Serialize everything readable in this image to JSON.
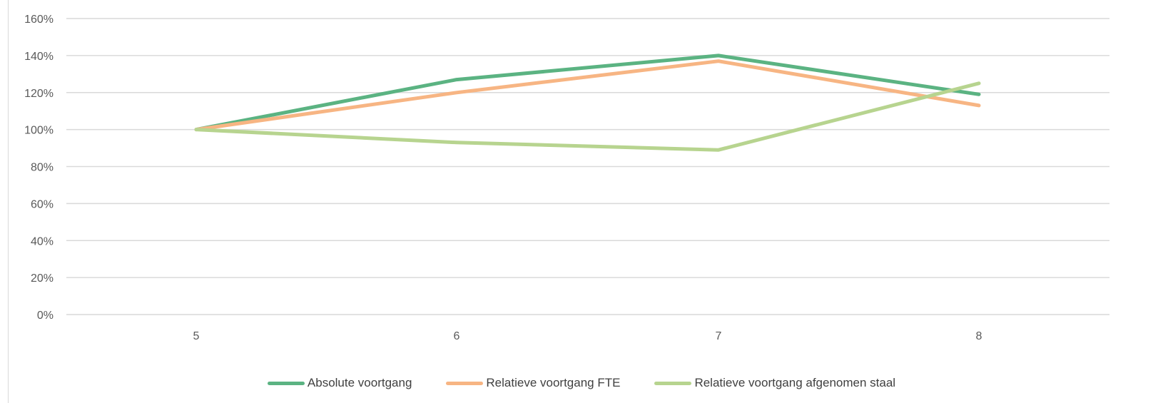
{
  "chart_data": {
    "type": "line",
    "title": "",
    "xlabel": "",
    "ylabel": "",
    "categories": [
      "5",
      "6",
      "7",
      "8"
    ],
    "y_ticks": [
      "0%",
      "20%",
      "40%",
      "60%",
      "80%",
      "100%",
      "120%",
      "140%",
      "160%"
    ],
    "ylim": [
      0,
      1.6
    ],
    "y_format": "percent",
    "grid": true,
    "legend_position": "bottom",
    "series": [
      {
        "name": "Absolute voortgang",
        "color": "#5bb382",
        "values": [
          1.0,
          1.27,
          1.4,
          1.19
        ]
      },
      {
        "name": "Relatieve voortgang FTE",
        "color": "#f7b583",
        "values": [
          1.0,
          1.2,
          1.37,
          1.13
        ]
      },
      {
        "name": "Relatieve voortgang afgenomen staal",
        "color": "#b7d48f",
        "values": [
          1.0,
          0.93,
          0.89,
          1.25
        ]
      }
    ]
  }
}
